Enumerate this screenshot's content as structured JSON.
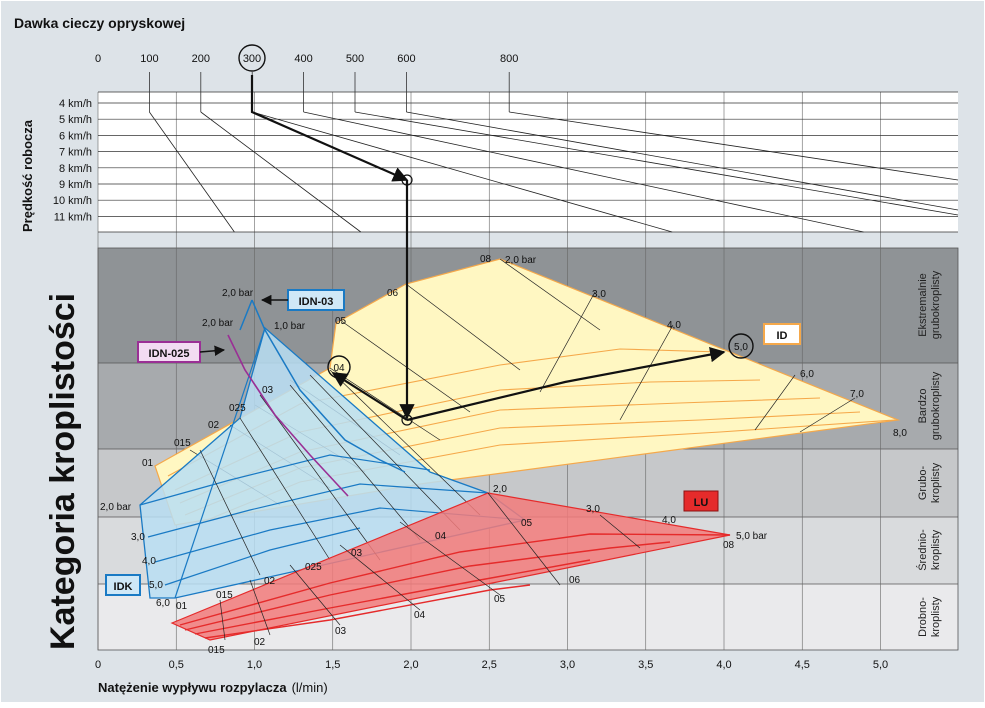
{
  "title": "Dawka cieczy opryskowej",
  "speed_axis_label": "Prędkość robocza",
  "droplet_axis_label": "Kategoria kroplistości",
  "x_axis_label_bold": "Natężenie wypływu rozpylacza",
  "x_axis_label_unit": "(l/min)",
  "dose_labels": [
    "0",
    "100",
    "200",
    "300",
    "400",
    "500",
    "600",
    "800"
  ],
  "speed_labels": [
    "4 km/h",
    "5 km/h",
    "6 km/h",
    "7 km/h",
    "8 km/h",
    "9 km/h",
    "10 km/h",
    "11 km/h"
  ],
  "flow_labels": [
    "0",
    "0,5",
    "1,0",
    "1,5",
    "2,0",
    "2,5",
    "3,0",
    "3,5",
    "4,0",
    "4,5",
    "5,0"
  ],
  "categories": [
    {
      "lines": [
        "Ekstremalnie",
        "grubokroplisty"
      ]
    },
    {
      "lines": [
        "Bardzo",
        "grubokroplisty"
      ]
    },
    {
      "lines": [
        "Grubo-",
        "kroplisty"
      ]
    },
    {
      "lines": [
        "Średnio-",
        "kroplisty"
      ]
    },
    {
      "lines": [
        "Drobno-",
        "kroplisty"
      ]
    }
  ],
  "nozzle_tags": {
    "id": "ID",
    "lu": "LU",
    "idk": "IDK",
    "idn03": "IDN-03",
    "idn025": "IDN-025"
  },
  "id_labels": {
    "sizes": [
      "01",
      "015",
      "02",
      "025",
      "03",
      "04",
      "05",
      "06",
      "08"
    ],
    "pressures": [
      "2,0 bar",
      "3,0",
      "4,0",
      "5,0",
      "6,0",
      "7,0",
      "8,0"
    ]
  },
  "lu_labels": {
    "sizes": [
      "015",
      "02",
      "025",
      "03",
      "04",
      "05",
      "06",
      "08"
    ],
    "pressures": [
      "2,0",
      "3,0",
      "4,0",
      "5,0 bar"
    ]
  },
  "idk_labels": {
    "sizes": [
      "01",
      "015",
      "02",
      "025",
      "03",
      "04",
      "05"
    ],
    "pressures": [
      "2,0 bar",
      "3,0",
      "4,0",
      "5,0",
      "6,0"
    ]
  },
  "idn03_labels": [
    "2,0 bar",
    "1,0 bar"
  ],
  "idn025_labels": [
    "2,0 bar"
  ],
  "example": {
    "dose": "300",
    "flow": "04",
    "pressure": "5,0"
  },
  "colors": {
    "id": "#f5a84a",
    "lu": "#e52b2b",
    "idk": "#1a7ac4",
    "idn025": "#9a2f95",
    "arrow": "#1a1a1a"
  }
}
